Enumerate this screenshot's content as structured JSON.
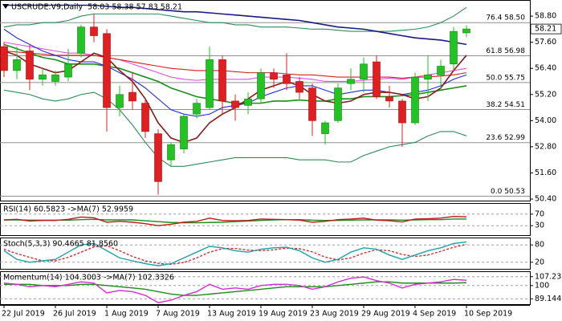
{
  "chart_data": [
    {
      "type": "candlestick",
      "title": "USCRUDE.V9,Daily  58.03 58.38 57.83 58.21",
      "categories": [
        "22 Jul 2019",
        null,
        null,
        null,
        "26 Jul 2019",
        null,
        null,
        null,
        "1 Aug 2019",
        null,
        null,
        null,
        "7 Aug 2019",
        null,
        null,
        null,
        "13 Aug 2019",
        null,
        null,
        null,
        "19 Aug 2019",
        null,
        null,
        null,
        "23 Aug 2019",
        null,
        null,
        null,
        "29 Aug 2019",
        null,
        null,
        null,
        "4 Sep 2019",
        null,
        null,
        null,
        "10 Sep 2019"
      ],
      "open": [
        57.4,
        56.3,
        57.2,
        55.9,
        55.8,
        56.0,
        57.1,
        58.3,
        58.0,
        54.6,
        55.3,
        54.8,
        53.4,
        52.2,
        52.7,
        54.3,
        54.6,
        56.8,
        54.9,
        54.7,
        55.0,
        56.2,
        56.1,
        55.8,
        55.5,
        53.4,
        54.0,
        55.7,
        55.9,
        56.7,
        55.1,
        54.9,
        53.9,
        55.9,
        56.1,
        56.6,
        58.03
      ],
      "high": [
        57.6,
        57.4,
        57.5,
        56.4,
        56.3,
        57.3,
        58.4,
        58.9,
        58.2,
        55.6,
        56.2,
        55.0,
        53.6,
        53.0,
        54.3,
        55.0,
        57.4,
        57.0,
        55.2,
        55.3,
        56.4,
        56.4,
        57.1,
        56.0,
        55.7,
        54.0,
        55.7,
        56.4,
        56.9,
        57.0,
        55.6,
        55.0,
        56.2,
        57.0,
        56.8,
        58.3,
        58.38
      ],
      "low": [
        56.0,
        55.9,
        55.4,
        55.6,
        55.6,
        55.8,
        56.9,
        57.6,
        53.5,
        54.2,
        54.5,
        53.2,
        50.6,
        51.9,
        52.5,
        54.1,
        54.5,
        54.3,
        54.0,
        54.3,
        54.8,
        55.5,
        55.4,
        55.0,
        53.3,
        52.9,
        53.9,
        55.4,
        55.3,
        55.0,
        54.6,
        52.8,
        53.8,
        54.9,
        55.4,
        56.3,
        57.83
      ],
      "close": [
        56.3,
        56.8,
        55.9,
        56.1,
        56.1,
        56.6,
        58.3,
        57.9,
        54.6,
        55.2,
        54.9,
        53.5,
        51.2,
        52.9,
        54.2,
        54.8,
        56.8,
        54.9,
        54.6,
        55.0,
        56.2,
        55.9,
        55.7,
        55.3,
        54.0,
        53.9,
        55.5,
        55.9,
        56.6,
        55.1,
        54.9,
        53.9,
        56.0,
        56.1,
        56.5,
        58.1,
        58.21
      ],
      "up_color": "#22c322",
      "down_color": "#e02020",
      "overlays": [
        {
          "color": "#2e8b57",
          "values": [
            58.3,
            58.4,
            58.4,
            58.5,
            58.5,
            58.6,
            58.8,
            58.9,
            58.9,
            58.9,
            58.9,
            58.9,
            58.9,
            58.8,
            58.7,
            58.6,
            58.5,
            58.5,
            58.4,
            58.4,
            58.3,
            58.3,
            58.3,
            58.25,
            58.2,
            58.2,
            58.15,
            58.1,
            58.1,
            58.1,
            58.1,
            58.15,
            58.2,
            58.3,
            58.5,
            58.8,
            59.2
          ]
        },
        {
          "color": "#2e8b57",
          "values": [
            55.4,
            55.3,
            55.2,
            55.0,
            54.9,
            55.0,
            55.2,
            55.3,
            55.0,
            54.5,
            53.8,
            53.0,
            52.3,
            51.9,
            51.9,
            52.0,
            52.1,
            52.2,
            52.3,
            52.3,
            52.3,
            52.3,
            52.3,
            52.2,
            52.2,
            52.2,
            52.1,
            52.1,
            52.4,
            52.6,
            52.8,
            52.9,
            53.0,
            53.3,
            53.5,
            53.5,
            53.3
          ]
        },
        {
          "color": "#1c8c1c",
          "values": [
            57.5,
            57.3,
            57.1,
            56.9,
            56.8,
            56.6,
            56.6,
            56.6,
            56.5,
            56.4,
            56.2,
            56.0,
            55.8,
            55.5,
            55.3,
            55.1,
            55.0,
            54.9,
            54.8,
            54.8,
            54.8,
            54.9,
            54.9,
            54.95,
            54.9,
            54.9,
            55.0,
            55.0,
            55.1,
            55.1,
            55.1,
            55.15,
            55.2,
            55.3,
            55.4,
            55.5,
            55.6
          ]
        },
        {
          "color": "#1a1a80",
          "values": [
            59.3,
            59.3,
            59.3,
            59.3,
            59.3,
            59.3,
            59.3,
            59.3,
            59.25,
            59.2,
            59.2,
            59.15,
            59.1,
            59.05,
            59.0,
            59.0,
            58.95,
            58.9,
            58.85,
            58.8,
            58.75,
            58.7,
            58.65,
            58.6,
            58.5,
            58.4,
            58.3,
            58.25,
            58.2,
            58.1,
            58.0,
            57.9,
            57.8,
            57.75,
            57.7,
            57.6,
            57.5
          ]
        },
        {
          "color": "#e050e0",
          "values": [
            57.6,
            57.5,
            57.4,
            57.3,
            57.2,
            57.1,
            57.1,
            57.0,
            56.9,
            56.8,
            56.6,
            56.4,
            56.2,
            56.0,
            55.9,
            55.85,
            55.9,
            55.9,
            55.9,
            55.9,
            56.0,
            56.0,
            56.0,
            55.95,
            55.9,
            55.8,
            55.8,
            55.8,
            55.85,
            55.9,
            55.95,
            55.9,
            56.0,
            56.1,
            56.2,
            56.3,
            56.4
          ]
        },
        {
          "color": "#d42020",
          "values": [
            57.2,
            57.15,
            57.1,
            57.05,
            57.0,
            57.0,
            57.0,
            57.0,
            56.9,
            56.8,
            56.7,
            56.6,
            56.5,
            56.4,
            56.35,
            56.3,
            56.3,
            56.3,
            56.25,
            56.2,
            56.2,
            56.2,
            56.15,
            56.1,
            56.1,
            56.05,
            56.0,
            56.0,
            56.0,
            56.0,
            56.0,
            55.95,
            56.0,
            56.0,
            56.05,
            56.1,
            56.2
          ]
        },
        {
          "color": "#2030e0",
          "values": [
            58.2,
            57.8,
            57.5,
            57.2,
            57.0,
            56.8,
            56.7,
            56.7,
            56.5,
            56.2,
            55.9,
            55.5,
            55.0,
            54.5,
            54.3,
            54.2,
            54.3,
            54.6,
            54.7,
            54.8,
            55.1,
            55.3,
            55.5,
            55.6,
            55.6,
            55.4,
            55.2,
            55.3,
            55.4,
            55.4,
            55.3,
            55.2,
            55.3,
            55.4,
            55.6,
            55.9,
            56.1
          ]
        },
        {
          "color": "#8b1a1a",
          "values": [
            57.2,
            57.0,
            56.6,
            56.4,
            56.2,
            56.3,
            56.7,
            57.1,
            56.9,
            56.3,
            55.8,
            55.0,
            53.9,
            53.2,
            53.0,
            53.2,
            53.9,
            54.3,
            54.6,
            55.0,
            55.4,
            55.6,
            55.8,
            55.6,
            55.2,
            54.9,
            54.8,
            54.9,
            55.2,
            55.3,
            55.3,
            55.2,
            55.0,
            55.1,
            55.5,
            56.3,
            57.0
          ]
        }
      ],
      "levels": [
        {
          "value": 58.5,
          "label": "76.4 58.50"
        },
        {
          "value": 56.98,
          "label": "61.8 56.98"
        },
        {
          "value": 55.75,
          "label": "50.0 55.75"
        },
        {
          "value": 54.51,
          "label": "38.2 54.51"
        },
        {
          "value": 52.99,
          "label": "23.6 52.99"
        },
        {
          "value": 50.53,
          "label": "0.0 50.53"
        }
      ],
      "last_price": {
        "value": 58.21,
        "label": "58.21"
      },
      "ylim": [
        50.29,
        59.54
      ],
      "yticks": [
        {
          "value": 58.8,
          "label": "58.80"
        },
        {
          "value": 57.6,
          "label": "57.60"
        },
        {
          "value": 56.4,
          "label": "56.40"
        },
        {
          "value": 55.2,
          "label": "55.20"
        },
        {
          "value": 54,
          "label": "54.00"
        },
        {
          "value": 52.8,
          "label": "52.80"
        },
        {
          "value": 51.6,
          "label": "51.60"
        },
        {
          "value": 50.4,
          "label": "50.40"
        }
      ]
    },
    {
      "type": "line",
      "title": "RSI(14) 60.5823 ->MA(7) 52.9959",
      "ylim": [
        0,
        100
      ],
      "yticks": [
        70,
        30
      ],
      "series": [
        {
          "color": "#1c8c1c",
          "values": [
            50,
            50,
            49,
            49,
            49,
            49,
            51,
            52,
            50,
            50,
            50,
            47,
            44,
            41,
            40,
            40,
            41,
            42,
            44,
            46,
            48,
            50,
            51,
            51,
            49,
            48,
            48,
            49,
            50,
            50,
            50,
            49,
            50,
            51,
            51,
            53,
            52.9959
          ]
        },
        {
          "color": "#c01818",
          "values": [
            50,
            52,
            46,
            48,
            48,
            52,
            60,
            57,
            42,
            45,
            42,
            37,
            30,
            35,
            42,
            45,
            56,
            48,
            47,
            48,
            53,
            52,
            51,
            49,
            42,
            45,
            51,
            53,
            56,
            49,
            47,
            43,
            53,
            54,
            56,
            62,
            60.5823
          ]
        }
      ]
    },
    {
      "type": "line",
      "title": "Stoch(5,3,3) 90.4665 81.8560",
      "ylim": [
        0,
        100
      ],
      "yticks": [
        80,
        20
      ],
      "series": [
        {
          "color": "#d03030",
          "dashed": true,
          "values": [
            65,
            50,
            37,
            25,
            25,
            37,
            55,
            73,
            77,
            60,
            40,
            25,
            16,
            13,
            19,
            35,
            55,
            67,
            68,
            62,
            60,
            63,
            69,
            67,
            56,
            38,
            28,
            35,
            52,
            63,
            60,
            47,
            40,
            45,
            58,
            72,
            81.856
          ]
        },
        {
          "color": "#20a0a8",
          "values": [
            60,
            30,
            20,
            25,
            30,
            55,
            80,
            85,
            60,
            35,
            25,
            15,
            8,
            15,
            35,
            55,
            75,
            70,
            60,
            55,
            65,
            70,
            72,
            60,
            35,
            20,
            30,
            55,
            70,
            65,
            45,
            30,
            45,
            60,
            70,
            85,
            90.4665
          ]
        }
      ]
    },
    {
      "type": "line",
      "title": "Momentum(14) 104.3003 ->MA(7) 102.3326",
      "ylim": [
        84.15,
        110.36
      ],
      "yticks": [
        107.2357,
        100,
        89.1445
      ],
      "series": [
        {
          "color": "#1c8c1c",
          "values": [
            101,
            101,
            101,
            100,
            100,
            100,
            101,
            101,
            100,
            99,
            98,
            97,
            95,
            93,
            92,
            92,
            93,
            94,
            95,
            96,
            97,
            98,
            99,
            99,
            99,
            99,
            100,
            101,
            102,
            103,
            103,
            102,
            102,
            102,
            102,
            102,
            102.3326
          ]
        },
        {
          "color": "#d030d0",
          "values": [
            102,
            101,
            99,
            100,
            99,
            101,
            103,
            102,
            94,
            96,
            95,
            92,
            86,
            88,
            92,
            95,
            101,
            97,
            98,
            97,
            100,
            101,
            101,
            100,
            97,
            99,
            103,
            106,
            107,
            104,
            102,
            98,
            101,
            102,
            103,
            105,
            104.3003
          ]
        }
      ]
    }
  ]
}
